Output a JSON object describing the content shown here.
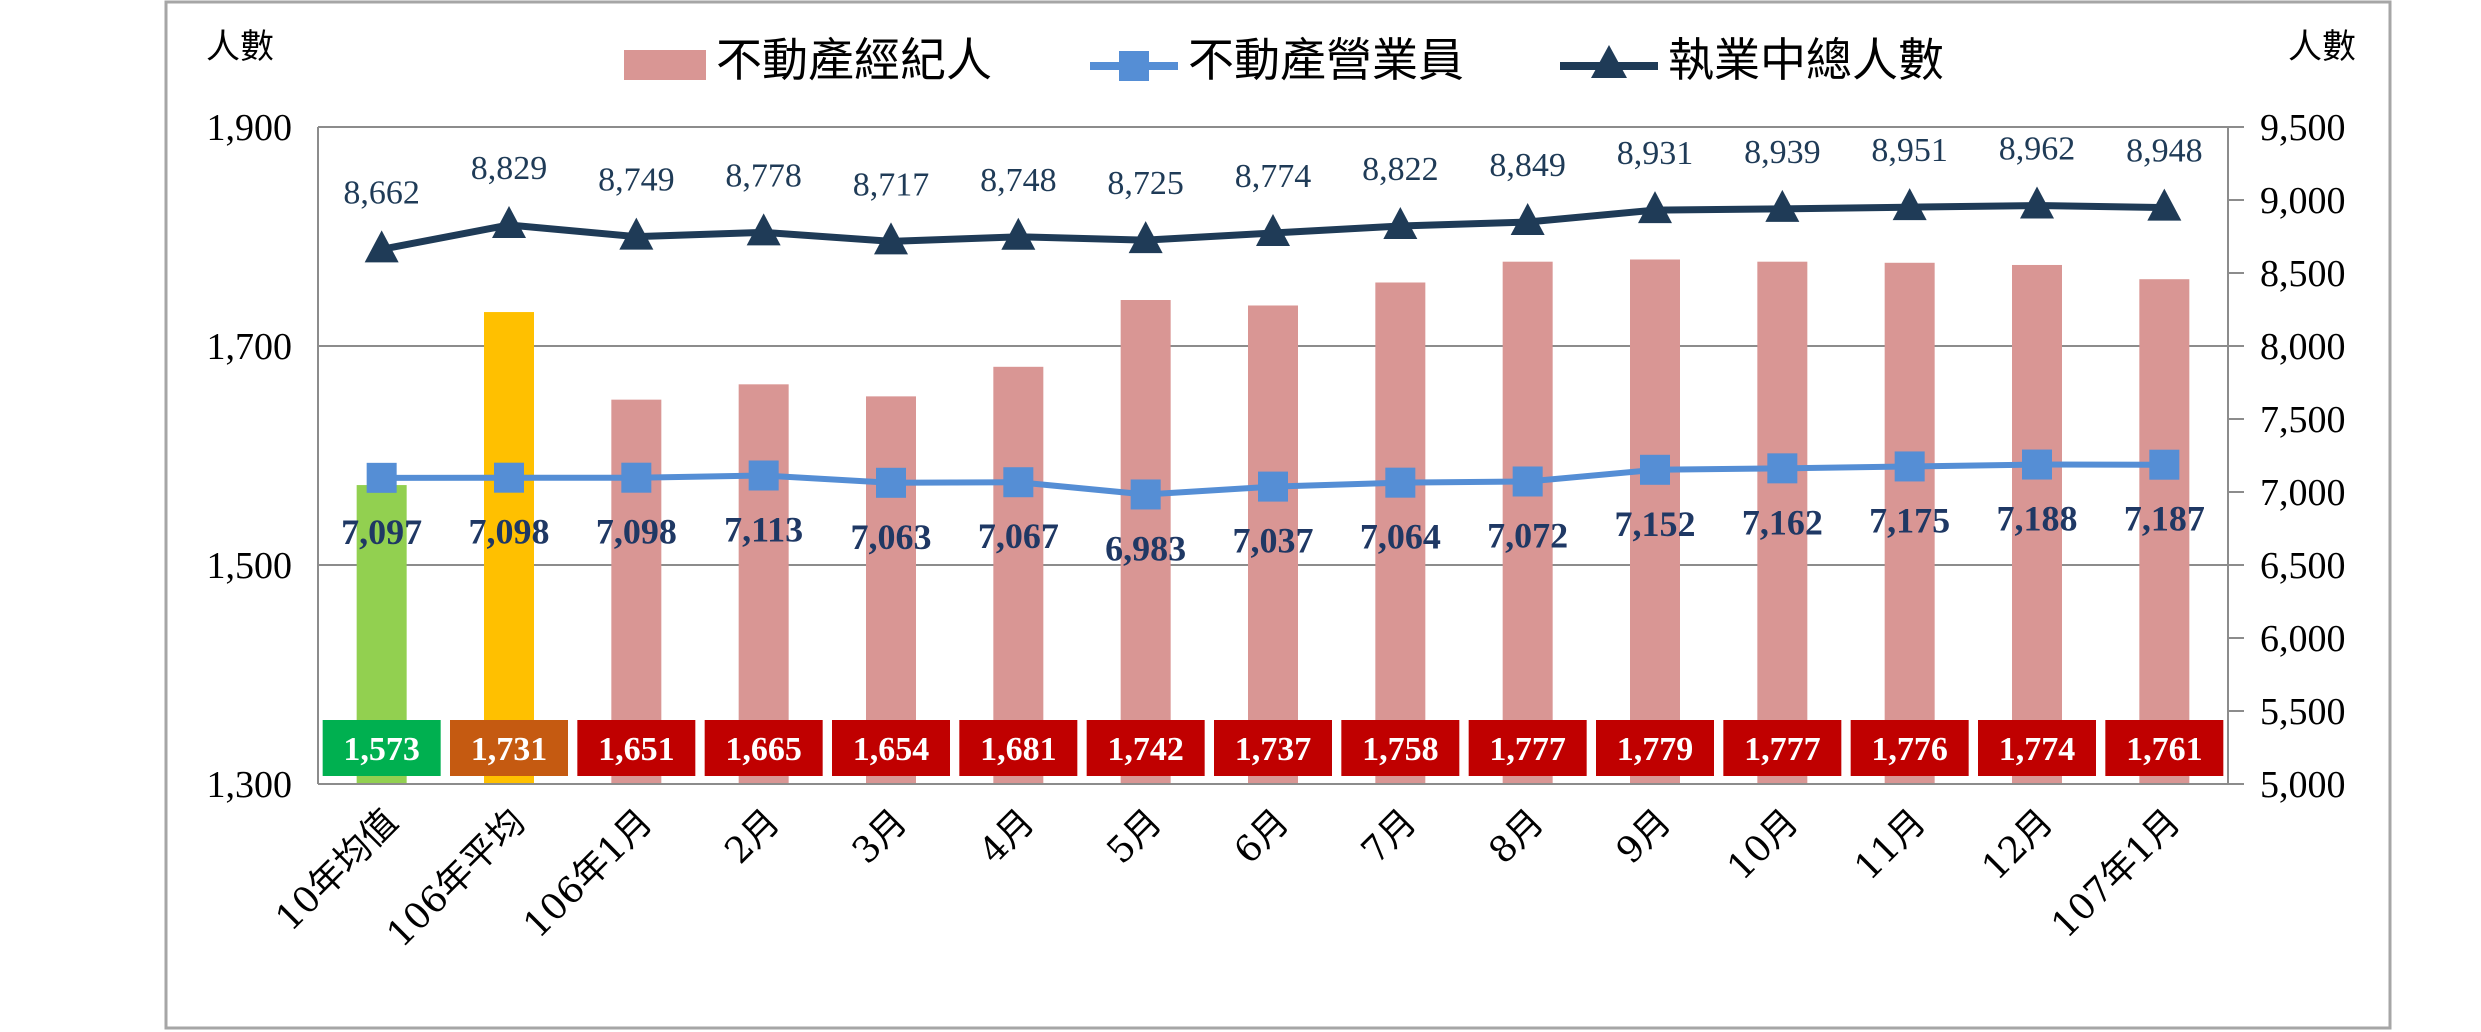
{
  "chart_data": {
    "type": "bar",
    "left_axis_title": "人數",
    "right_axis_title": "人數",
    "categories": [
      "10年均值",
      "106年平均",
      "106年1月",
      "2月",
      "3月",
      "4月",
      "5月",
      "6月",
      "7月",
      "8月",
      "9月",
      "10月",
      "11月",
      "12月",
      "107年1月"
    ],
    "y_left": {
      "min": 1300,
      "max": 1900,
      "ticks": [
        1300,
        1500,
        1700,
        1900
      ],
      "tick_labels": [
        "1,300",
        "1,500",
        "1,700",
        "1,900"
      ]
    },
    "y_right": {
      "min": 5000,
      "max": 9500,
      "ticks": [
        5000,
        5500,
        6000,
        6500,
        7000,
        7500,
        8000,
        8500,
        9000,
        9500
      ],
      "tick_labels": [
        "5,000",
        "5,500",
        "6,000",
        "6,500",
        "7,000",
        "7,500",
        "8,000",
        "8,500",
        "9,000",
        "9,500"
      ]
    },
    "gridlines": [
      1500,
      1700,
      1900
    ],
    "legend_position": "top",
    "series": [
      {
        "name": "不動產經紀人",
        "type": "bar",
        "axis": "left",
        "values": [
          1573,
          1731,
          1651,
          1665,
          1654,
          1681,
          1742,
          1737,
          1758,
          1777,
          1779,
          1777,
          1776,
          1774,
          1761
        ],
        "labels": [
          "1,573",
          "1,731",
          "1,651",
          "1,665",
          "1,654",
          "1,681",
          "1,742",
          "1,737",
          "1,758",
          "1,777",
          "1,779",
          "1,777",
          "1,776",
          "1,774",
          "1,761"
        ],
        "color": "#d99694",
        "special_colors": {
          "0": "#92d050",
          "1": "#ffc000"
        },
        "label_box_colors": {
          "default": "#c00000",
          "0": "#00b050",
          "1": "#c55a11"
        }
      },
      {
        "name": "不動產營業員",
        "type": "line",
        "axis": "right",
        "marker": "square",
        "values": [
          7097,
          7098,
          7098,
          7113,
          7063,
          7067,
          6983,
          7037,
          7064,
          7072,
          7152,
          7162,
          7175,
          7188,
          7187
        ],
        "labels": [
          "7,097",
          "7,098",
          "7,098",
          "7,113",
          "7,063",
          "7,067",
          "6,983",
          "7,037",
          "7,064",
          "7,072",
          "7,152",
          "7,162",
          "7,175",
          "7,188",
          "7,187"
        ],
        "color": "#558ed5"
      },
      {
        "name": "執業中總人數",
        "type": "line",
        "axis": "right",
        "marker": "triangle",
        "values": [
          8662,
          8829,
          8749,
          8778,
          8717,
          8748,
          8725,
          8774,
          8822,
          8849,
          8931,
          8939,
          8951,
          8962,
          8948
        ],
        "labels": [
          "8,662",
          "8,829",
          "8,749",
          "8,778",
          "8,717",
          "8,748",
          "8,725",
          "8,774",
          "8,822",
          "8,849",
          "8,931",
          "8,939",
          "8,951",
          "8,962",
          "8,948"
        ],
        "color": "#1f3b57"
      }
    ]
  }
}
